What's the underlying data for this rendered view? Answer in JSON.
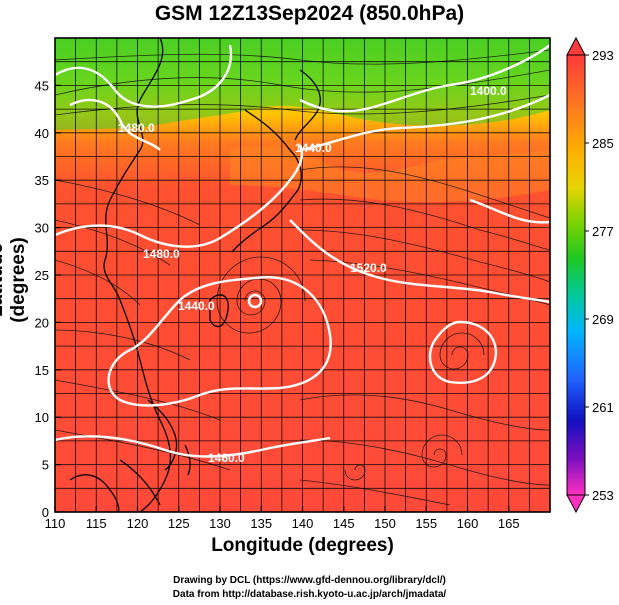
{
  "title": "GSM 12Z13Sep2024 (850.0hPa)",
  "xlabel": "Longitude (degrees)",
  "ylabel": "Latitude  (degrees)",
  "credits": [
    "Drawing by DCL (https://www.gfd-dennou.org/library/dcl/)",
    "Data from http://database.rish.kyoto-u.ac.jp/arch/jmadata/"
  ],
  "map": {
    "lon_range": [
      110,
      170
    ],
    "lat_range": [
      0,
      50
    ],
    "lon_ticks": [
      110,
      115,
      120,
      125,
      130,
      135,
      140,
      145,
      150,
      155,
      160,
      165
    ],
    "lat_ticks": [
      0,
      5,
      10,
      15,
      20,
      25,
      30,
      35,
      40,
      45
    ],
    "grid": true,
    "contour_labels": [
      "1400.0",
      "1480.0",
      "1520.0",
      "1440.0",
      "1440.0",
      "1480.0",
      "1460.0"
    ],
    "colorbar": {
      "ticks": [
        293,
        285,
        277,
        269,
        261,
        253
      ],
      "colors": [
        "#ff3b3b",
        "#ff7a1f",
        "#ffb000",
        "#e8d400",
        "#7cd400",
        "#20c820",
        "#00c8a0",
        "#00b4ff",
        "#2060ff",
        "#1010c0",
        "#8010c0",
        "#ff30c0"
      ]
    }
  }
}
